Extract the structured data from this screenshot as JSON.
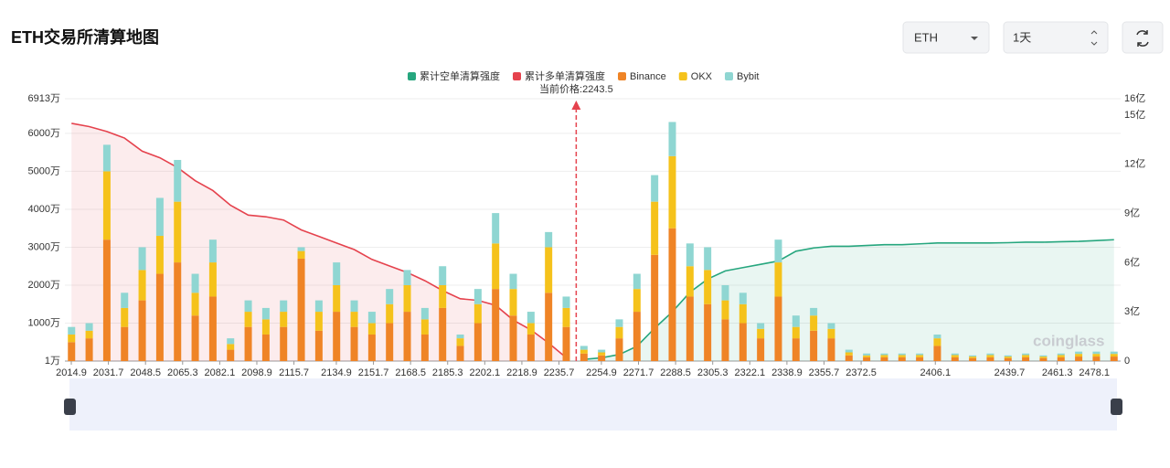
{
  "header": {
    "title": "ETH交易所清算地图",
    "symbol": "ETH",
    "interval": "1天"
  },
  "watermark": "coinglass",
  "chart_data": {
    "type": "bar",
    "legend": "top",
    "grid": true,
    "x": [
      2015,
      2023,
      2031,
      2039,
      2047,
      2055,
      2063,
      2071,
      2079,
      2087,
      2095,
      2103,
      2111,
      2119,
      2127,
      2135,
      2143,
      2151,
      2159,
      2167,
      2175,
      2183,
      2191,
      2199,
      2207,
      2215,
      2223,
      2231,
      2239,
      2247,
      2255,
      2263,
      2271,
      2279,
      2287,
      2295,
      2303,
      2311,
      2319,
      2327,
      2335,
      2343,
      2351,
      2359,
      2367,
      2375,
      2383,
      2391,
      2399,
      2407,
      2415,
      2423,
      2431,
      2439,
      2447,
      2455,
      2463,
      2471,
      2479,
      2487
    ],
    "xlim": [
      2012,
      2490
    ],
    "xticks": [
      2014.9,
      2031.7,
      2048.5,
      2065.3,
      2082.1,
      2098.9,
      2115.7,
      2134.9,
      2151.7,
      2168.5,
      2185.3,
      2202.1,
      2218.9,
      2235.7,
      2254.9,
      2271.7,
      2288.5,
      2305.3,
      2322.1,
      2338.9,
      2355.7,
      2372.5,
      2406.1,
      2439.7,
      2461.3,
      2478.1
    ],
    "ylim": [
      1,
      6913
    ],
    "yticks": [
      {
        "value": 1,
        "label": "1万"
      },
      {
        "value": 1000,
        "label": "1000万"
      },
      {
        "value": 2000,
        "label": "2000万"
      },
      {
        "value": 3000,
        "label": "3000万"
      },
      {
        "value": 4000,
        "label": "4000万"
      },
      {
        "value": 5000,
        "label": "5000万"
      },
      {
        "value": 6000,
        "label": "6000万"
      },
      {
        "value": 6913,
        "label": "6913万"
      }
    ],
    "y2lim": [
      0,
      16
    ],
    "y2ticks": [
      0,
      {
        "value": 3,
        "label": "3亿"
      },
      {
        "value": 6,
        "label": "6亿"
      },
      {
        "value": 9,
        "label": "9亿"
      },
      {
        "value": 12,
        "label": "12亿"
      },
      {
        "value": 15,
        "label": "15亿"
      },
      {
        "value": 16,
        "label": "16亿"
      }
    ],
    "annotation": {
      "value": 2243.5,
      "label": "当前价格:2243.5"
    },
    "series": [
      {
        "name": "累计空单清算强度",
        "type": "line",
        "axis": "y2",
        "color": "#26a67e",
        "values": [
          null,
          null,
          null,
          null,
          null,
          null,
          null,
          null,
          null,
          null,
          null,
          null,
          null,
          null,
          null,
          null,
          null,
          null,
          null,
          null,
          null,
          null,
          null,
          null,
          null,
          null,
          null,
          null,
          null,
          0.1,
          0.2,
          0.4,
          0.9,
          2.0,
          3.0,
          4.2,
          5.0,
          5.5,
          5.7,
          5.9,
          6.1,
          6.7,
          6.9,
          7.0,
          7.0,
          7.05,
          7.1,
          7.1,
          7.15,
          7.2,
          7.2,
          7.2,
          7.2,
          7.22,
          7.25,
          7.25,
          7.28,
          7.3,
          7.35,
          7.4
        ]
      },
      {
        "name": "累计多单清算强度",
        "type": "line",
        "axis": "y2",
        "color": "#e5424d",
        "values": [
          14.5,
          14.3,
          14.0,
          13.6,
          12.8,
          12.4,
          11.8,
          11.0,
          10.4,
          9.5,
          8.9,
          8.8,
          8.6,
          8.0,
          7.6,
          7.2,
          6.8,
          6.2,
          5.8,
          5.4,
          4.9,
          4.3,
          3.8,
          3.7,
          3.4,
          2.5,
          1.9,
          1.1,
          0.2,
          null,
          null,
          null,
          null,
          null,
          null,
          null,
          null,
          null,
          null,
          null,
          null,
          null,
          null,
          null,
          null,
          null,
          null,
          null,
          null,
          null,
          null,
          null,
          null,
          null,
          null,
          null,
          null,
          null,
          null,
          null
        ]
      },
      {
        "name": "Binance",
        "type": "bar",
        "color": "#ef8426",
        "values": [
          500,
          600,
          3200,
          900,
          1600,
          2300,
          2600,
          1200,
          1700,
          300,
          900,
          700,
          900,
          2700,
          800,
          1300,
          900,
          700,
          1000,
          1300,
          700,
          1400,
          400,
          1000,
          1900,
          1200,
          700,
          1800,
          900,
          200,
          150,
          600,
          1300,
          2800,
          3500,
          1700,
          1500,
          1100,
          1000,
          600,
          1700,
          600,
          800,
          600,
          150,
          100,
          100,
          100,
          100,
          400,
          100,
          80,
          100,
          80,
          100,
          80,
          100,
          120,
          120,
          120
        ]
      },
      {
        "name": "OKX",
        "type": "bar",
        "color": "#f5c21b",
        "values": [
          200,
          200,
          1800,
          500,
          800,
          1000,
          1600,
          600,
          900,
          150,
          400,
          400,
          400,
          200,
          500,
          700,
          400,
          300,
          500,
          700,
          400,
          600,
          200,
          500,
          1200,
          700,
          300,
          1200,
          500,
          100,
          80,
          300,
          600,
          1400,
          1900,
          800,
          900,
          500,
          500,
          250,
          900,
          300,
          400,
          250,
          80,
          50,
          60,
          60,
          60,
          200,
          60,
          40,
          60,
          40,
          60,
          40,
          60,
          70,
          70,
          70
        ]
      },
      {
        "name": "Bybit",
        "type": "bar",
        "color": "#8fd6d2",
        "values": [
          200,
          200,
          700,
          400,
          600,
          1000,
          1100,
          500,
          600,
          150,
          300,
          300,
          300,
          100,
          300,
          600,
          300,
          300,
          400,
          400,
          300,
          500,
          100,
          400,
          800,
          400,
          300,
          400,
          300,
          100,
          70,
          200,
          400,
          700,
          900,
          600,
          600,
          400,
          300,
          150,
          600,
          300,
          200,
          150,
          70,
          50,
          40,
          40,
          40,
          100,
          40,
          30,
          40,
          30,
          40,
          30,
          40,
          60,
          60,
          60
        ]
      }
    ]
  }
}
